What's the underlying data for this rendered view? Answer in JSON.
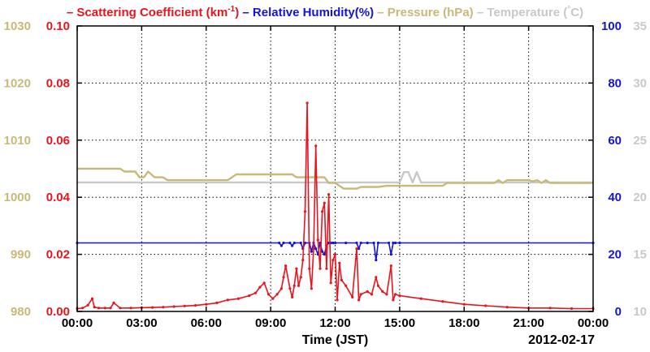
{
  "chart_data": {
    "type": "line",
    "xlabel": "Time (JST)",
    "date": "2012-02-17",
    "x_ticks": [
      "00:00",
      "03:00",
      "06:00",
      "09:00",
      "12:00",
      "15:00",
      "18:00",
      "21:00",
      "00:00"
    ],
    "xlim": [
      0,
      24
    ],
    "grid": true,
    "legend": [
      {
        "prefix": "– ",
        "text": "Scattering Coefficient (km",
        "sup": "-1",
        "suffix": ")",
        "color": "#e8141e"
      },
      {
        "prefix": "– ",
        "text": "Relative Humidity(%)",
        "sup": "",
        "suffix": "",
        "color": "#1414d2"
      },
      {
        "prefix": "– ",
        "text": "Pressure (hPa)",
        "sup": "",
        "suffix": "",
        "color": "#c8b978"
      },
      {
        "prefix": "– ",
        "text": "Temperature (",
        "sup": "°",
        "suffix": "C)",
        "color": "#c8c8c8"
      }
    ],
    "axes": {
      "pressure": {
        "color": "#c8b978",
        "ylim": [
          980,
          1030
        ],
        "ticks": [
          "980",
          "990",
          "1000",
          "1010",
          "1020",
          "1030"
        ]
      },
      "scattering": {
        "color": "#e8141e",
        "ylim": [
          0,
          0.1
        ],
        "ticks": [
          "0.00",
          "0.02",
          "0.04",
          "0.06",
          "0.08",
          "0.10"
        ]
      },
      "humidity": {
        "color": "#1414d2",
        "ylim": [
          0,
          100
        ],
        "ticks": [
          "0",
          "20",
          "40",
          "60",
          "80",
          "100"
        ]
      },
      "temperature": {
        "color": "#c8c8c8",
        "ylim": [
          10,
          35
        ],
        "ticks": [
          "10",
          "15",
          "20",
          "25",
          "30",
          "35"
        ]
      }
    },
    "series": [
      {
        "name": "Scattering Coefficient",
        "axis": "scattering",
        "color": "#e8141e",
        "markers": true,
        "x": [
          0,
          0.25,
          0.5,
          0.7,
          0.8,
          1.0,
          1.3,
          1.55,
          1.7,
          2.0,
          2.5,
          3.0,
          3.5,
          4.0,
          4.5,
          5.0,
          5.5,
          6.0,
          6.5,
          7.0,
          7.5,
          8.0,
          8.3,
          8.5,
          8.7,
          8.9,
          9.1,
          9.3,
          9.5,
          9.6,
          9.7,
          9.9,
          10.0,
          10.1,
          10.2,
          10.3,
          10.4,
          10.5,
          10.6,
          10.7,
          10.8,
          10.9,
          11.0,
          11.1,
          11.2,
          11.3,
          11.4,
          11.5,
          11.6,
          11.7,
          11.8,
          11.9,
          12.0,
          12.1,
          12.2,
          12.3,
          12.5,
          12.8,
          13.0,
          13.1,
          13.2,
          13.5,
          13.7,
          13.9,
          14.0,
          14.2,
          14.4,
          14.6,
          14.7,
          14.8,
          15.0,
          16.0,
          17.0,
          18.0,
          19.0,
          20.0,
          21.0,
          22.0,
          23.0,
          24.0
        ],
        "y": [
          0.001,
          0.0012,
          0.0022,
          0.0045,
          0.0015,
          0.0012,
          0.0012,
          0.0012,
          0.003,
          0.0012,
          0.0012,
          0.0013,
          0.0014,
          0.0015,
          0.0017,
          0.0019,
          0.0021,
          0.0025,
          0.003,
          0.004,
          0.0045,
          0.0055,
          0.0065,
          0.0085,
          0.01,
          0.006,
          0.0045,
          0.006,
          0.008,
          0.012,
          0.016,
          0.008,
          0.005,
          0.009,
          0.015,
          0.009,
          0.012,
          0.018,
          0.035,
          0.073,
          0.015,
          0.008,
          0.022,
          0.058,
          0.025,
          0.015,
          0.035,
          0.038,
          0.015,
          0.041,
          0.01,
          0.018,
          0.02,
          0.004,
          0.017,
          0.011,
          0.009,
          0.005,
          0.022,
          0.004,
          0.006,
          0.007,
          0.006,
          0.012,
          0.009,
          0.007,
          0.006,
          0.016,
          0.004,
          0.006,
          0.0055,
          0.0045,
          0.0035,
          0.0025,
          0.002,
          0.0015,
          0.0012,
          0.0012,
          0.001,
          0.001
        ]
      },
      {
        "name": "Relative Humidity",
        "axis": "humidity",
        "color": "#1414d2",
        "markers": true,
        "x": [
          0,
          9.4,
          9.5,
          9.6,
          9.9,
          10.0,
          10.1,
          10.4,
          10.5,
          10.6,
          10.8,
          10.9,
          11.0,
          11.1,
          11.2,
          11.3,
          11.4,
          11.5,
          11.6,
          11.7,
          11.8,
          11.9,
          12.0,
          12.5,
          13.0,
          13.1,
          13.2,
          13.5,
          13.8,
          13.9,
          14.0,
          14.5,
          14.6,
          14.7,
          14.8,
          15.0,
          24.0
        ],
        "y": [
          24,
          24,
          23,
          24,
          24,
          23,
          24,
          24,
          22,
          24,
          24,
          21,
          24,
          22,
          20,
          24,
          21,
          20,
          23,
          24,
          24,
          24,
          24,
          24,
          24,
          22,
          24,
          24,
          24,
          18,
          24,
          24,
          20,
          24,
          24,
          24,
          24
        ]
      },
      {
        "name": "Pressure",
        "axis": "pressure",
        "color": "#c8b978",
        "markers": false,
        "x": [
          0,
          2.0,
          2.2,
          2.7,
          2.9,
          3.1,
          3.3,
          3.6,
          4.0,
          4.2,
          5.0,
          6.0,
          7.0,
          7.2,
          7.4,
          8.0,
          9.0,
          9.2,
          10.0,
          10.2,
          11.5,
          11.7,
          12.0,
          12.4,
          13.0,
          13.2,
          14.0,
          14.4,
          15.0,
          15.5,
          16.0,
          17.0,
          17.2,
          18.0,
          19.0,
          19.4,
          19.6,
          19.8,
          20.0,
          21.0,
          21.2,
          21.4,
          21.6,
          21.8,
          22.0,
          22.4,
          24.0
        ],
        "y": [
          1005,
          1005,
          1004.5,
          1004.5,
          1003.5,
          1003.5,
          1004.5,
          1003.5,
          1003.5,
          1003,
          1003,
          1003,
          1003,
          1003.5,
          1004,
          1004,
          1004,
          1004,
          1004,
          1003.5,
          1003.5,
          1002.5,
          1002.5,
          1001.5,
          1001.5,
          1001.8,
          1001.8,
          1002,
          1002,
          1002,
          1002,
          1002,
          1002.5,
          1002.5,
          1002.5,
          1002.5,
          1003,
          1002.5,
          1003,
          1003,
          1002.8,
          1003,
          1002.5,
          1003,
          1002.5,
          1002.5,
          1002.5
        ]
      },
      {
        "name": "Temperature",
        "axis": "temperature",
        "color": "#c8c8c8",
        "markers": false,
        "x": [
          0,
          11.9,
          12.1,
          15.0,
          15.2,
          15.4,
          15.6,
          15.8,
          16.0,
          16.2,
          24.0
        ],
        "y": [
          21.3,
          21.3,
          21.3,
          21.3,
          22.2,
          22.2,
          21.3,
          22.2,
          21.3,
          21.3,
          21.3
        ]
      }
    ]
  }
}
